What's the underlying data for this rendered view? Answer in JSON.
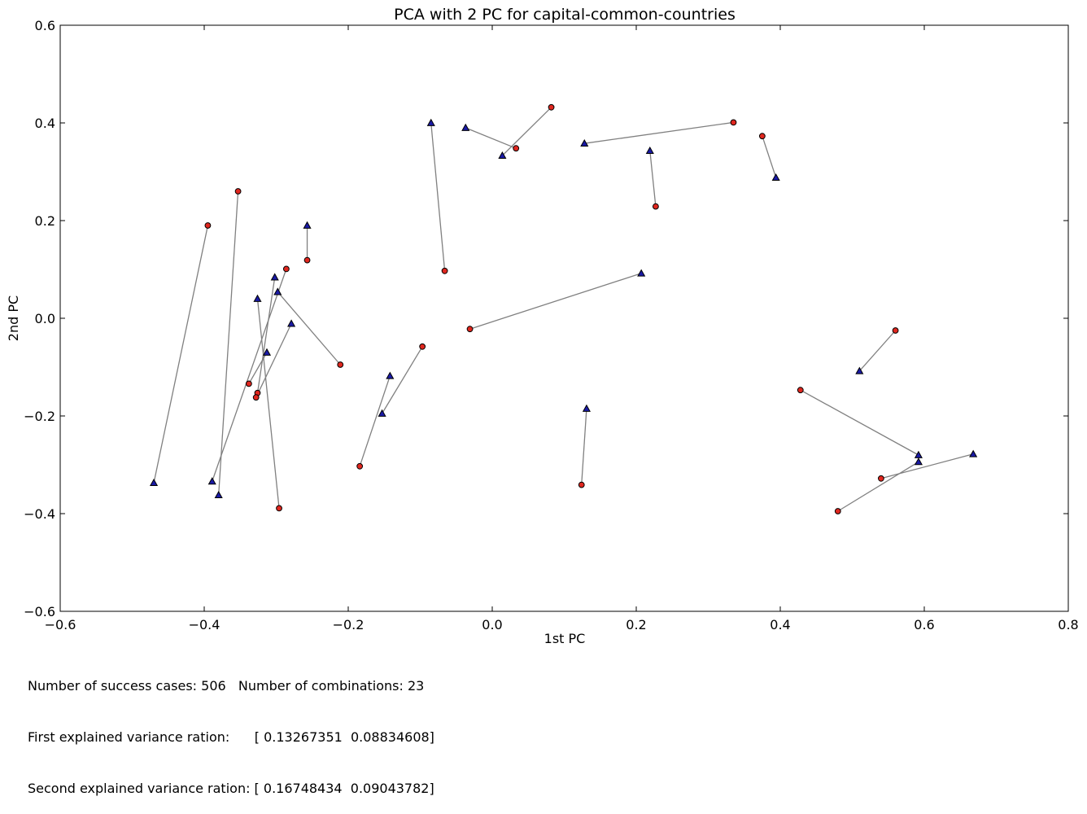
{
  "chart_data": {
    "type": "scatter",
    "title": "PCA with 2 PC for capital-common-countries",
    "xlabel": "1st PC",
    "ylabel": "2nd PC",
    "xlim": [
      -0.6,
      0.8
    ],
    "ylim": [
      -0.6,
      0.6
    ],
    "xticks": [
      "−0.6",
      "−0.4",
      "−0.2",
      "0.0",
      "0.2",
      "0.4",
      "0.6",
      "0.8"
    ],
    "yticks": [
      "−0.6",
      "−0.4",
      "−0.2",
      "0.0",
      "0.2",
      "0.4",
      "0.6"
    ],
    "grid": false,
    "colors": {
      "circle": "#e0271f",
      "triangle": "#1a1aa6",
      "line": "#808080"
    },
    "pairs": [
      {
        "circle": [
          -0.395,
          0.19
        ],
        "triangle": [
          -0.47,
          -0.337
        ]
      },
      {
        "circle": [
          -0.353,
          0.26
        ],
        "triangle": [
          -0.38,
          -0.362
        ]
      },
      {
        "circle": [
          -0.257,
          0.119
        ],
        "triangle": [
          -0.257,
          0.19
        ]
      },
      {
        "circle": [
          -0.286,
          0.101
        ],
        "triangle": [
          -0.389,
          -0.334
        ]
      },
      {
        "circle": [
          -0.211,
          -0.095
        ],
        "triangle": [
          -0.298,
          0.054
        ]
      },
      {
        "circle": [
          -0.338,
          -0.134
        ],
        "triangle": [
          -0.313,
          -0.07
        ]
      },
      {
        "circle": [
          -0.326,
          -0.153
        ],
        "triangle": [
          -0.302,
          0.084
        ]
      },
      {
        "circle": [
          -0.328,
          -0.162
        ],
        "triangle": [
          -0.279,
          -0.011
        ]
      },
      {
        "circle": [
          -0.296,
          -0.389
        ],
        "triangle": [
          -0.326,
          0.04
        ]
      },
      {
        "circle": [
          -0.066,
          0.097
        ],
        "triangle": [
          -0.085,
          0.4
        ]
      },
      {
        "circle": [
          -0.097,
          -0.058
        ],
        "triangle": [
          -0.153,
          -0.195
        ]
      },
      {
        "circle": [
          -0.184,
          -0.303
        ],
        "triangle": [
          -0.142,
          -0.118
        ]
      },
      {
        "circle": [
          0.033,
          0.348
        ],
        "triangle": [
          -0.037,
          0.39
        ]
      },
      {
        "circle": [
          0.082,
          0.432
        ],
        "triangle": [
          0.014,
          0.333
        ]
      },
      {
        "circle": [
          0.335,
          0.401
        ],
        "triangle": [
          0.128,
          0.358
        ]
      },
      {
        "circle": [
          0.227,
          0.229
        ],
        "triangle": [
          0.219,
          0.343
        ]
      },
      {
        "circle": [
          0.375,
          0.373
        ],
        "triangle": [
          0.394,
          0.288
        ]
      },
      {
        "circle": [
          -0.031,
          -0.022
        ],
        "triangle": [
          0.207,
          0.092
        ]
      },
      {
        "circle": [
          0.124,
          -0.341
        ],
        "triangle": [
          0.131,
          -0.185
        ]
      },
      {
        "circle": [
          0.56,
          -0.025
        ],
        "triangle": [
          0.51,
          -0.108
        ]
      },
      {
        "circle": [
          0.428,
          -0.147
        ],
        "triangle": [
          0.592,
          -0.28
        ]
      },
      {
        "circle": [
          0.54,
          -0.328
        ],
        "triangle": [
          0.668,
          -0.278
        ]
      },
      {
        "circle": [
          0.48,
          -0.395
        ],
        "triangle": [
          0.592,
          -0.294
        ]
      }
    ]
  },
  "footer": {
    "line1": "Number of success cases: 506   Number of combinations: 23",
    "line2": "First explained variance ration:      [ 0.13267351  0.08834608]",
    "line3": "Second explained variance ration: [ 0.16748434  0.09043782]"
  }
}
